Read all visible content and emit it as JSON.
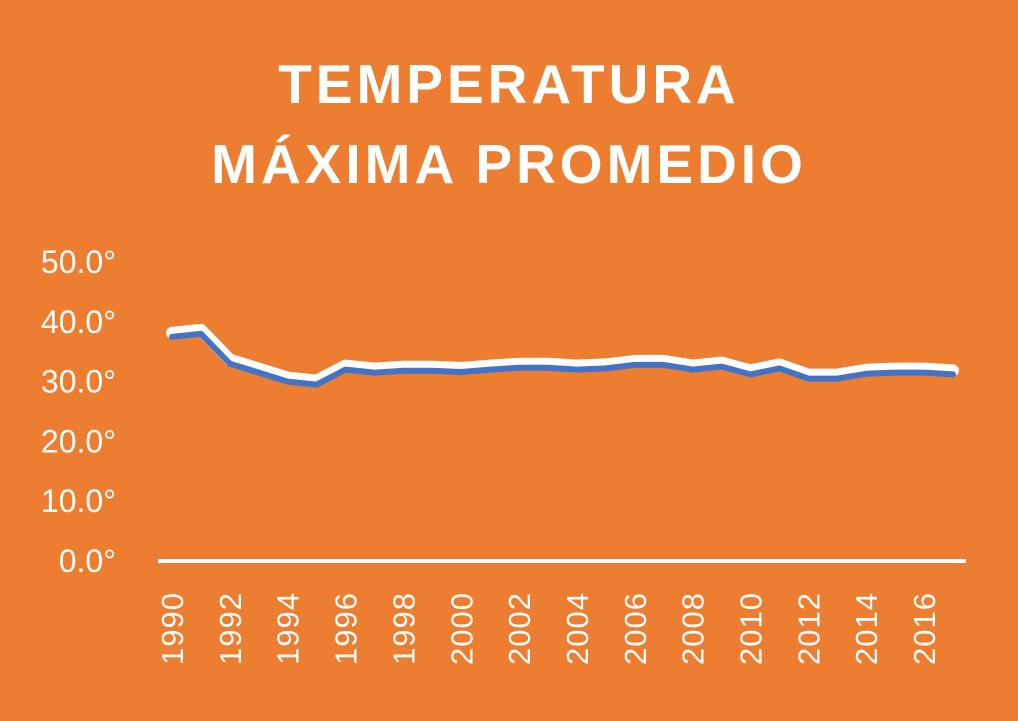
{
  "title_lines": [
    "TEMPERATURA",
    "MÁXIMA PROMEDIO"
  ],
  "colors": {
    "background": "#ED7D31",
    "line": "#4472C4",
    "line_glow": "#FFFFFF",
    "text": "#FFFFFF"
  },
  "chart_data": {
    "type": "line",
    "title": "TEMPERATURA MÁXIMA PROMEDIO",
    "xlabel": "",
    "ylabel": "",
    "x": [
      1990,
      1991,
      1992,
      1993,
      1994,
      1995,
      1996,
      1997,
      1998,
      1999,
      2000,
      2001,
      2002,
      2003,
      2004,
      2005,
      2006,
      2007,
      2008,
      2009,
      2010,
      2011,
      2012,
      2013,
      2014,
      2015,
      2016,
      2017
    ],
    "x_tick_labels": [
      "1990",
      "1992",
      "1994",
      "1996",
      "1998",
      "2000",
      "2002",
      "2004",
      "2006",
      "2008",
      "2010",
      "2012",
      "2014",
      "2016"
    ],
    "y_tick_labels": [
      "0.0°",
      "10.0°",
      "20.0°",
      "30.0°",
      "40.0°",
      "50.0°"
    ],
    "y_ticks": [
      0,
      10,
      20,
      30,
      40,
      50
    ],
    "ylim": [
      0,
      50
    ],
    "grid": false,
    "drop_lines": true,
    "series": [
      {
        "values": [
          37.5,
          38.0,
          33.0,
          31.5,
          30.0,
          29.5,
          32.0,
          31.5,
          31.8,
          31.8,
          31.6,
          32.0,
          32.3,
          32.3,
          32.0,
          32.2,
          32.8,
          32.8,
          32.0,
          32.5,
          31.2,
          32.2,
          30.5,
          30.5,
          31.3,
          31.5,
          31.5,
          31.2
        ]
      }
    ]
  }
}
